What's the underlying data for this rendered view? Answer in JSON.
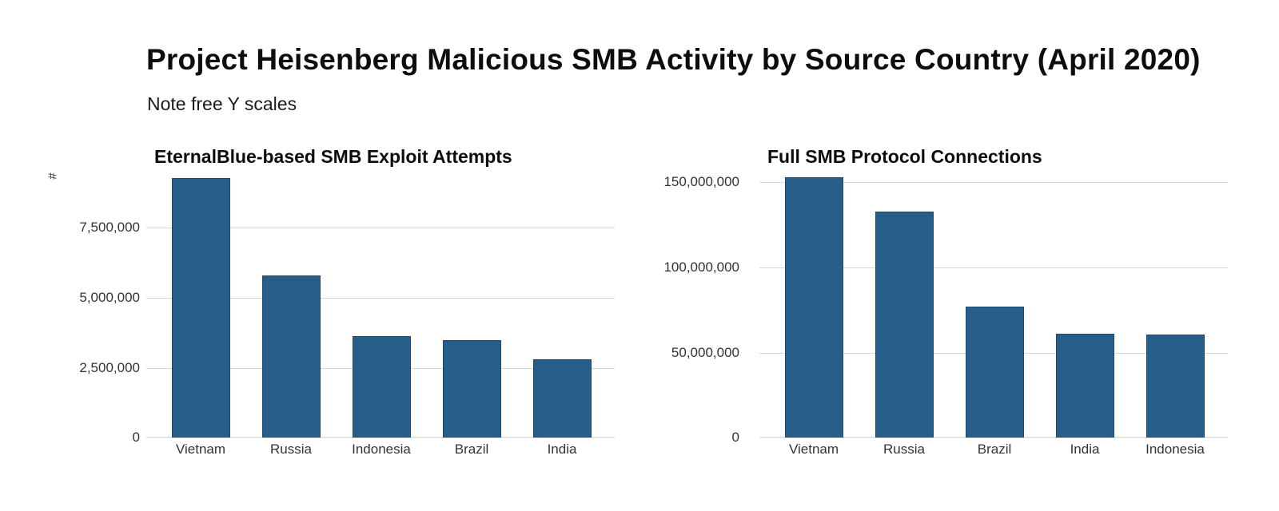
{
  "header": {
    "title": "Project Heisenberg Malicious SMB Activity by Source Country (April 2020)",
    "subtitle": "Note free Y scales"
  },
  "colors": {
    "bar": "#275d89",
    "bar_border": "#1d4a72",
    "grid": "#d6d6d6"
  },
  "chart_data": [
    {
      "type": "bar",
      "title": "EternalBlue-based SMB Exploit Attempts",
      "xlabel": "",
      "ylabel": "#",
      "categories": [
        "Vietnam",
        "Russia",
        "Indonesia",
        "Brazil",
        "India"
      ],
      "values": [
        9260000,
        5790000,
        3620000,
        3480000,
        2790000
      ],
      "ylim": [
        0,
        9400000
      ],
      "yticks": [
        0,
        2500000,
        5000000,
        7500000
      ],
      "ytick_labels": [
        "0",
        "2,500,000",
        "5,000,000",
        "7,500,000"
      ],
      "grid": true,
      "legend": "none"
    },
    {
      "type": "bar",
      "title": "Full SMB Protocol Connections",
      "xlabel": "",
      "ylabel": "",
      "categories": [
        "Vietnam",
        "Russia",
        "Brazil",
        "India",
        "Indonesia"
      ],
      "values": [
        152300000,
        132200000,
        76600000,
        60700000,
        60300000
      ],
      "ylim": [
        0,
        154000000
      ],
      "yticks": [
        0,
        50000000,
        100000000,
        150000000
      ],
      "ytick_labels": [
        "0",
        "50,000,000",
        "100,000,000",
        "150,000,000"
      ],
      "grid": true,
      "legend": "none"
    }
  ]
}
